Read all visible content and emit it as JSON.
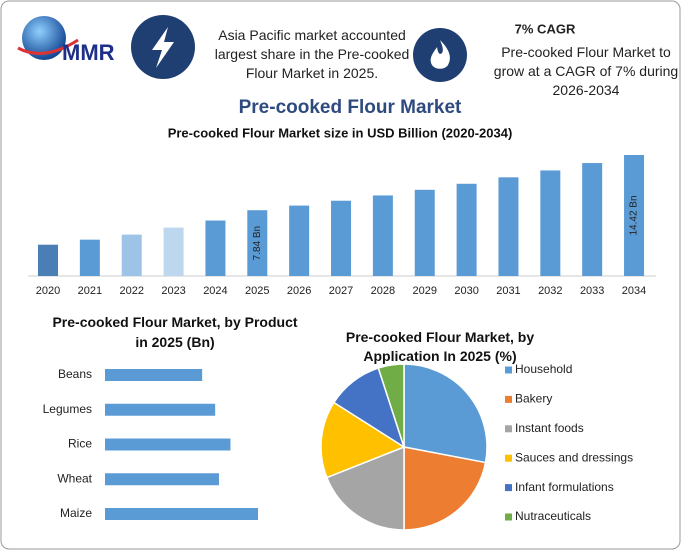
{
  "header": {
    "logo": "MMR",
    "fact": "Asia Pacific market accounted largest share in the Pre-cooked Flour Market in 2025.",
    "cagr_title": "7% CAGR",
    "cagr_text": "Pre-cooked Flour Market to grow at a CAGR of 7% during 2026-2034",
    "title": "Pre-cooked Flour Market"
  },
  "chart_data": [
    {
      "type": "bar",
      "title": "Pre-cooked Flour Market size in USD Billion (2020-2034)",
      "categories": [
        "2020",
        "2021",
        "2022",
        "2023",
        "2024",
        "2025",
        "2026",
        "2027",
        "2028",
        "2029",
        "2030",
        "2031",
        "2032",
        "2033",
        "2034"
      ],
      "values": [
        3.73,
        4.33,
        4.93,
        5.77,
        6.61,
        7.84,
        8.39,
        8.97,
        9.6,
        10.27,
        10.99,
        11.76,
        12.58,
        13.46,
        14.42
      ],
      "value_labels": [
        null,
        null,
        null,
        null,
        null,
        "7.84 Bn",
        null,
        null,
        null,
        null,
        null,
        null,
        null,
        null,
        "14.42 Bn"
      ],
      "colors": [
        "#4a7fb5",
        "#5b9bd5",
        "#9dc3e6",
        "#bdd7ee",
        "#5b9bd5",
        "#5b9bd5",
        "#5b9bd5",
        "#5b9bd5",
        "#5b9bd5",
        "#5b9bd5",
        "#5b9bd5",
        "#5b9bd5",
        "#5b9bd5",
        "#5b9bd5",
        "#5b9bd5"
      ]
    },
    {
      "type": "hbar",
      "title": "Pre-cooked Flour Market, by Product in 2025 (Bn)",
      "categories": [
        "Beans",
        "Legumes",
        "Rice",
        "Wheat",
        "Maize"
      ],
      "values": [
        1.27,
        1.44,
        1.64,
        1.49,
        2.0
      ],
      "color": "#5b9bd5"
    },
    {
      "type": "pie",
      "title": "Pre-cooked Flour Market, by Application In 2025 (%)",
      "categories": [
        "Household",
        "Bakery",
        "Instant foods",
        "Sauces and dressings",
        "Infant formulations",
        "Nutraceuticals"
      ],
      "values": [
        28,
        22,
        19,
        15,
        11,
        5
      ],
      "colors": [
        "#5b9bd5",
        "#ed7d31",
        "#a5a5a5",
        "#ffc000",
        "#4472c4",
        "#70ad47"
      ]
    }
  ]
}
